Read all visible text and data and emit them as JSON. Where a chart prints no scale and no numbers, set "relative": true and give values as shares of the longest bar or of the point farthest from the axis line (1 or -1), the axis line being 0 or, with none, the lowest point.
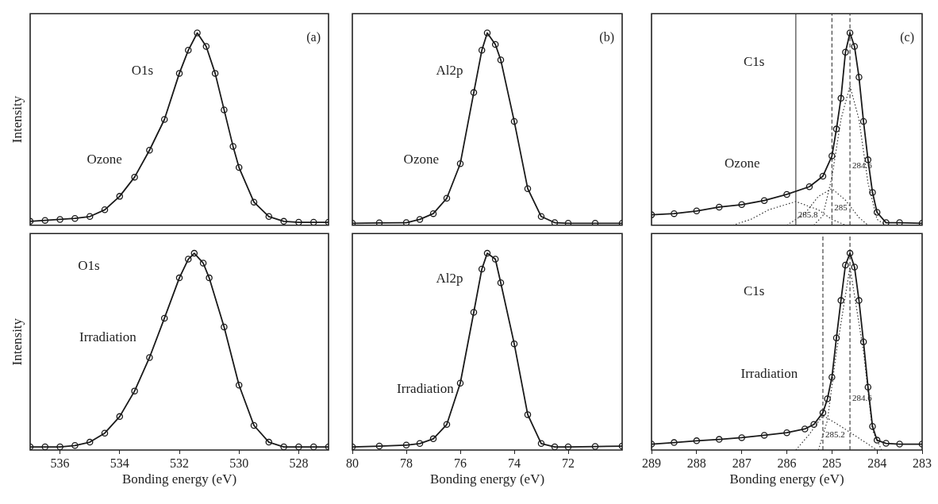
{
  "chart_data": [
    {
      "type": "scatter",
      "title": "(a)",
      "ylabel": "Intensity",
      "relative": true,
      "xlim": [
        537,
        527
      ],
      "xticks": [
        536,
        534,
        532,
        530,
        528
      ],
      "tick_labels": false,
      "annotations": [
        "O1s",
        "Ozone"
      ],
      "series": [
        {
          "type": "scatter",
          "marker": "circle",
          "color": "#1a1a1a",
          "x": [
            537,
            536.5,
            536,
            535.5,
            535,
            534.5,
            534,
            533.5,
            533,
            532.5,
            532,
            531.7,
            531.4,
            531.1,
            530.8,
            530.5,
            530.2,
            530,
            529.5,
            529,
            528.5,
            528,
            527.5,
            527
          ],
          "values": [
            0.02,
            0.025,
            0.03,
            0.035,
            0.045,
            0.08,
            0.15,
            0.25,
            0.39,
            0.55,
            0.79,
            0.91,
            1.0,
            0.93,
            0.79,
            0.6,
            0.41,
            0.3,
            0.12,
            0.045,
            0.02,
            0.015,
            0.015,
            0.015
          ]
        },
        {
          "type": "line",
          "marker": "none",
          "color": "#1a1a1a",
          "x": [
            537,
            536.5,
            536,
            535.5,
            535,
            534.5,
            534,
            533.5,
            533,
            532.5,
            532,
            531.7,
            531.4,
            531.1,
            530.8,
            530.5,
            530.2,
            530,
            529.5,
            529,
            528.5,
            528,
            527.5,
            527
          ],
          "values": [
            0.02,
            0.025,
            0.03,
            0.035,
            0.045,
            0.08,
            0.15,
            0.25,
            0.39,
            0.55,
            0.79,
            0.91,
            1.0,
            0.93,
            0.79,
            0.6,
            0.41,
            0.3,
            0.12,
            0.045,
            0.02,
            0.015,
            0.015,
            0.015
          ]
        }
      ]
    },
    {
      "type": "scatter",
      "title": "(b)",
      "relative": true,
      "xlim": [
        80,
        70
      ],
      "xticks": [
        80,
        78,
        76,
        74,
        72
      ],
      "tick_labels": false,
      "annotations": [
        "Al2p",
        "Ozone"
      ],
      "series": [
        {
          "type": "scatter",
          "marker": "circle",
          "color": "#1a1a1a",
          "x": [
            80,
            79,
            78,
            77.5,
            77,
            76.5,
            76,
            75.5,
            75.2,
            75,
            74.7,
            74.5,
            74,
            73.5,
            73,
            72.5,
            72,
            71,
            70
          ],
          "values": [
            0.01,
            0.012,
            0.013,
            0.03,
            0.06,
            0.14,
            0.32,
            0.69,
            0.91,
            1.0,
            0.94,
            0.86,
            0.54,
            0.19,
            0.045,
            0.013,
            0.01,
            0.01,
            0.01
          ]
        },
        {
          "type": "line",
          "marker": "none",
          "color": "#1a1a1a",
          "x": [
            80,
            79,
            78,
            77.5,
            77,
            76.5,
            76,
            75.5,
            75.2,
            75,
            74.7,
            74.5,
            74,
            73.5,
            73,
            72.5,
            72,
            71,
            70
          ],
          "values": [
            0.01,
            0.012,
            0.013,
            0.03,
            0.06,
            0.14,
            0.32,
            0.69,
            0.91,
            1.0,
            0.94,
            0.86,
            0.54,
            0.19,
            0.045,
            0.013,
            0.01,
            0.01,
            0.01
          ]
        }
      ]
    },
    {
      "type": "scatter",
      "title": "(c)",
      "relative": true,
      "xlim": [
        289,
        283
      ],
      "xticks": [
        289,
        288,
        287,
        286,
        285,
        284,
        283
      ],
      "tick_labels": false,
      "annotations": [
        "C1s",
        "Ozone",
        {
          "text": "284.6",
          "x": 284.6,
          "y": 0.31
        },
        {
          "text": "285",
          "x": 285,
          "y": 0.09
        },
        {
          "text": "285.8",
          "x": 285.8,
          "y": 0.05
        }
      ],
      "ref_lines": [
        {
          "axis": "x",
          "value": 284.6,
          "color": "#333333",
          "line_style": "dashed"
        },
        {
          "axis": "x",
          "value": 285,
          "color": "#333333",
          "line_style": "dashed"
        },
        {
          "axis": "x",
          "value": 285.8,
          "color": "#333333",
          "line_style": "solid"
        }
      ],
      "series": [
        {
          "type": "scatter",
          "marker": "circle",
          "color": "#1a1a1a",
          "x": [
            289,
            288.5,
            288,
            287.5,
            287,
            286.5,
            286,
            285.5,
            285.2,
            285,
            284.9,
            284.8,
            284.7,
            284.6,
            284.5,
            284.4,
            284.3,
            284.2,
            284.1,
            284,
            283.8,
            283.5,
            283
          ],
          "values": [
            0.054,
            0.06,
            0.074,
            0.094,
            0.107,
            0.128,
            0.16,
            0.2,
            0.255,
            0.36,
            0.5,
            0.66,
            0.9,
            1.0,
            0.93,
            0.77,
            0.54,
            0.34,
            0.17,
            0.067,
            0.013,
            0.013,
            0.01
          ]
        },
        {
          "type": "line",
          "marker": "none",
          "color": "#1a1a1a",
          "x": [
            289,
            288.5,
            288,
            287.5,
            287,
            286.5,
            286,
            285.5,
            285.2,
            285,
            284.9,
            284.8,
            284.7,
            284.6,
            284.5,
            284.4,
            284.3,
            284.2,
            284.1,
            284,
            283.8,
            283.5,
            283
          ],
          "values": [
            0.054,
            0.06,
            0.074,
            0.094,
            0.107,
            0.128,
            0.16,
            0.2,
            0.255,
            0.36,
            0.5,
            0.66,
            0.9,
            1.0,
            0.93,
            0.77,
            0.54,
            0.34,
            0.17,
            0.067,
            0.013,
            0.013,
            0.01
          ]
        },
        {
          "type": "line",
          "marker": "none",
          "line_style": "dotted",
          "color": "#333333",
          "x": [
            285.4,
            285.2,
            285,
            284.8,
            284.6,
            284.4,
            284.2,
            284,
            283.8
          ],
          "values": [
            0,
            0.05,
            0.25,
            0.55,
            0.725,
            0.55,
            0.22,
            0.03,
            0
          ]
        },
        {
          "type": "line",
          "marker": "none",
          "line_style": "dotted",
          "color": "#333333",
          "x": [
            286,
            285.6,
            285.3,
            285,
            284.7,
            284.4,
            284.2
          ],
          "values": [
            0,
            0.06,
            0.15,
            0.19,
            0.13,
            0.04,
            0
          ]
        },
        {
          "type": "line",
          "marker": "none",
          "line_style": "dotted",
          "color": "#333333",
          "x": [
            287.2,
            286.8,
            286.4,
            285.8,
            285.3,
            285,
            284.7
          ],
          "values": [
            0,
            0.03,
            0.08,
            0.123,
            0.08,
            0.03,
            0
          ]
        }
      ]
    },
    {
      "type": "scatter",
      "ylabel": "Intensity",
      "xlabel": "Bonding energy (eV)",
      "relative": true,
      "xlim": [
        537,
        527
      ],
      "xticks": [
        536,
        534,
        532,
        530,
        528
      ],
      "tick_labels": "x",
      "annotations": [
        "O1s",
        "Irradiation"
      ],
      "series": [
        {
          "type": "scatter",
          "marker": "circle",
          "color": "#1a1a1a",
          "x": [
            537,
            536.5,
            536,
            535.5,
            535,
            534.5,
            534,
            533.5,
            533,
            532.5,
            532,
            531.7,
            531.5,
            531.2,
            531,
            530.5,
            530,
            529.5,
            529,
            528.5,
            528,
            527.5,
            527
          ],
          "values": [
            0.016,
            0.016,
            0.016,
            0.023,
            0.04,
            0.086,
            0.17,
            0.3,
            0.47,
            0.67,
            0.875,
            0.97,
            1.0,
            0.95,
            0.875,
            0.625,
            0.33,
            0.125,
            0.04,
            0.016,
            0.016,
            0.016,
            0.016
          ]
        },
        {
          "type": "line",
          "marker": "none",
          "color": "#1a1a1a",
          "x": [
            537,
            536.5,
            536,
            535.5,
            535,
            534.5,
            534,
            533.5,
            533,
            532.5,
            532,
            531.7,
            531.5,
            531.2,
            531,
            530.5,
            530,
            529.5,
            529,
            528.5,
            528,
            527.5,
            527
          ],
          "values": [
            0.016,
            0.016,
            0.016,
            0.023,
            0.04,
            0.086,
            0.17,
            0.3,
            0.47,
            0.67,
            0.875,
            0.97,
            1.0,
            0.95,
            0.875,
            0.625,
            0.33,
            0.125,
            0.04,
            0.016,
            0.016,
            0.016,
            0.016
          ]
        }
      ]
    },
    {
      "type": "scatter",
      "xlabel": "Bonding energy (eV)",
      "relative": true,
      "xlim": [
        80,
        70
      ],
      "xticks": [
        80,
        78,
        76,
        74,
        72
      ],
      "tick_labels": "x",
      "annotations": [
        "Al2p",
        "Irradiation"
      ],
      "series": [
        {
          "type": "scatter",
          "marker": "circle",
          "color": "#1a1a1a",
          "x": [
            80,
            79,
            78,
            77.5,
            77,
            76.5,
            76,
            75.5,
            75.2,
            75,
            74.7,
            74.5,
            74,
            73.5,
            73,
            72.5,
            72,
            71,
            70
          ],
          "values": [
            0.016,
            0.02,
            0.025,
            0.033,
            0.057,
            0.13,
            0.34,
            0.7,
            0.92,
            1.0,
            0.97,
            0.85,
            0.54,
            0.18,
            0.033,
            0.016,
            0.016,
            0.018,
            0.02
          ]
        },
        {
          "type": "line",
          "marker": "none",
          "color": "#1a1a1a",
          "x": [
            80,
            79,
            78,
            77.5,
            77,
            76.5,
            76,
            75.5,
            75.2,
            75,
            74.7,
            74.5,
            74,
            73.5,
            73,
            72.5,
            72,
            71,
            70
          ],
          "values": [
            0.016,
            0.02,
            0.025,
            0.033,
            0.057,
            0.13,
            0.34,
            0.7,
            0.92,
            1.0,
            0.97,
            0.85,
            0.54,
            0.18,
            0.033,
            0.016,
            0.016,
            0.018,
            0.02
          ]
        }
      ]
    },
    {
      "type": "scatter",
      "xlabel": "Bonding energy (eV)",
      "relative": true,
      "xlim": [
        289,
        283
      ],
      "xticks": [
        289,
        288,
        287,
        286,
        285,
        284,
        283
      ],
      "tick_labels": "x",
      "annotations": [
        "C1s",
        "Irradiation",
        {
          "text": "284.6",
          "x": 284.6,
          "y": 0.26
        },
        {
          "text": "285.2",
          "x": 285.2,
          "y": 0.075
        }
      ],
      "ref_lines": [
        {
          "axis": "x",
          "value": 284.6,
          "color": "#333333",
          "line_style": "dashed"
        },
        {
          "axis": "x",
          "value": 285.2,
          "color": "#333333",
          "line_style": "dashed"
        }
      ],
      "series": [
        {
          "type": "scatter",
          "marker": "circle",
          "color": "#1a1a1a",
          "x": [
            289,
            288.5,
            288,
            287.5,
            287,
            286.5,
            286,
            285.6,
            285.4,
            285.2,
            285.1,
            285,
            284.9,
            284.8,
            284.7,
            284.6,
            284.5,
            284.4,
            284.3,
            284.2,
            284.1,
            284,
            283.8,
            283.5,
            283
          ],
          "values": [
            0.03,
            0.038,
            0.047,
            0.054,
            0.063,
            0.075,
            0.088,
            0.107,
            0.13,
            0.19,
            0.26,
            0.37,
            0.57,
            0.76,
            0.94,
            1.0,
            0.93,
            0.76,
            0.55,
            0.32,
            0.12,
            0.05,
            0.034,
            0.03,
            0.03
          ]
        },
        {
          "type": "line",
          "marker": "none",
          "color": "#1a1a1a",
          "x": [
            289,
            288.5,
            288,
            287.5,
            287,
            286.5,
            286,
            285.6,
            285.4,
            285.2,
            285.1,
            285,
            284.9,
            284.8,
            284.7,
            284.6,
            284.5,
            284.4,
            284.3,
            284.2,
            284.1,
            284,
            283.8,
            283.5,
            283
          ],
          "values": [
            0.03,
            0.038,
            0.047,
            0.054,
            0.063,
            0.075,
            0.088,
            0.107,
            0.13,
            0.19,
            0.26,
            0.37,
            0.57,
            0.76,
            0.94,
            1.0,
            0.93,
            0.76,
            0.55,
            0.32,
            0.12,
            0.05,
            0.034,
            0.03,
            0.03
          ]
        },
        {
          "type": "line",
          "marker": "none",
          "line_style": "dotted",
          "color": "#333333",
          "x": [
            285.3,
            285.1,
            284.9,
            284.6,
            284.3,
            284.1,
            283.9
          ],
          "values": [
            0,
            0.15,
            0.5,
            0.93,
            0.5,
            0.1,
            0
          ]
        },
        {
          "type": "line",
          "marker": "none",
          "line_style": "dotted",
          "color": "#333333",
          "x": [
            285.8,
            285.5,
            285.2,
            284.8,
            284.4,
            284
          ],
          "values": [
            0,
            0.08,
            0.176,
            0.12,
            0.06,
            0
          ]
        }
      ]
    }
  ]
}
